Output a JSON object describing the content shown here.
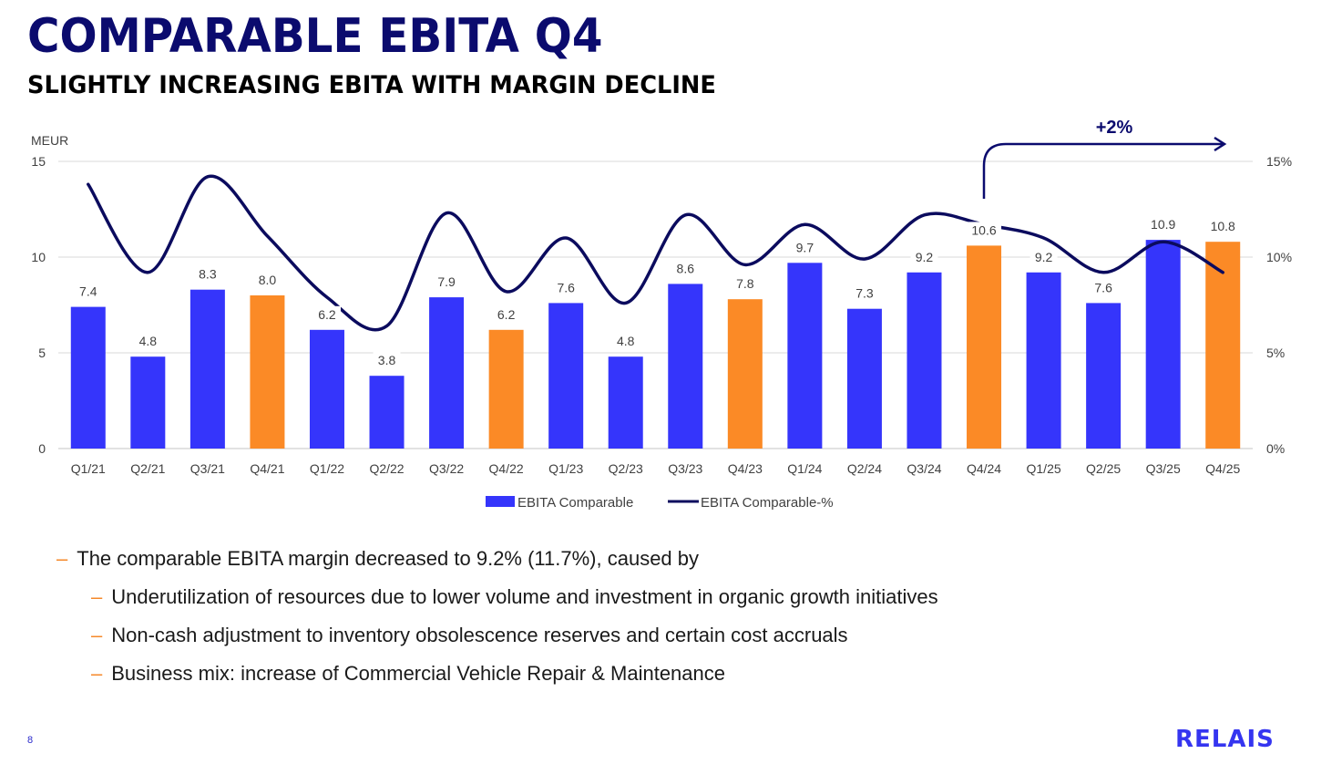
{
  "header": {
    "title": "COMPARABLE EBITA Q4",
    "subtitle": "SLIGHTLY INCREASING EBITA WITH MARGIN DECLINE"
  },
  "chart_data": {
    "type": "bar",
    "unit_label": "MEUR",
    "categories": [
      "Q1/21",
      "Q2/21",
      "Q3/21",
      "Q4/21",
      "Q1/22",
      "Q2/22",
      "Q3/22",
      "Q4/22",
      "Q1/23",
      "Q2/23",
      "Q3/23",
      "Q4/23",
      "Q1/24",
      "Q2/24",
      "Q3/24",
      "Q4/24",
      "Q1/25",
      "Q2/25",
      "Q3/25",
      "Q4/25"
    ],
    "series": [
      {
        "name": "EBITA Comparable",
        "type": "bar",
        "axis": "left",
        "values": [
          7.4,
          4.8,
          8.3,
          8.0,
          6.2,
          3.8,
          7.9,
          6.2,
          7.6,
          4.8,
          8.6,
          7.8,
          9.7,
          7.3,
          9.2,
          10.6,
          9.2,
          7.6,
          10.9,
          10.8
        ],
        "labels": [
          "7.4",
          "4.8",
          "8.3",
          "8.0",
          "6.2",
          "3.8",
          "7.9",
          "6.2",
          "7.6",
          "4.8",
          "8.6",
          "7.8",
          "9.7",
          "7.3",
          "9.2",
          "10.6",
          "9.2",
          "7.6",
          "10.9",
          "10.8"
        ],
        "highlight_categories": [
          "Q4/21",
          "Q4/22",
          "Q4/23",
          "Q4/24",
          "Q4/25"
        ]
      },
      {
        "name": "EBITA Comparable-%",
        "type": "line",
        "axis": "right",
        "values": [
          13.8,
          9.2,
          14.2,
          11.1,
          7.9,
          6.4,
          12.3,
          8.2,
          11.0,
          7.6,
          12.2,
          9.6,
          11.7,
          9.9,
          12.2,
          11.7,
          11.0,
          9.2,
          10.8,
          9.2
        ]
      }
    ],
    "y_left": {
      "range": [
        0,
        15
      ],
      "ticks": [
        "0",
        "5",
        "10",
        "15"
      ]
    },
    "y_right": {
      "range": [
        0,
        15
      ],
      "ticks": [
        "0%",
        "5%",
        "10%",
        "15%"
      ]
    },
    "grid": true,
    "legend_position": "bottom-center",
    "annotation": {
      "text": "+2%",
      "from": "Q4/24",
      "to": "Q4/25"
    },
    "colors": {
      "bar": "#3535fb",
      "bar_highlight": "#fb8a26",
      "line": "#0b0b5e",
      "grid": "#d9d9d9",
      "annotation": "#0b0b6e"
    }
  },
  "bullets": [
    {
      "level": 1,
      "text": "The comparable EBITA margin decreased to 9.2% (11.7%), caused by"
    },
    {
      "level": 2,
      "text": "Underutilization of resources due to lower volume and investment in organic growth initiatives"
    },
    {
      "level": 2,
      "text": "Non-cash adjustment to inventory obsolescence reserves and certain cost accruals"
    },
    {
      "level": 2,
      "text": "Business mix: increase of Commercial Vehicle Repair & Maintenance"
    }
  ],
  "bullet_marker": "–",
  "footer": {
    "page_number": "8",
    "logo": "RELAIS"
  }
}
